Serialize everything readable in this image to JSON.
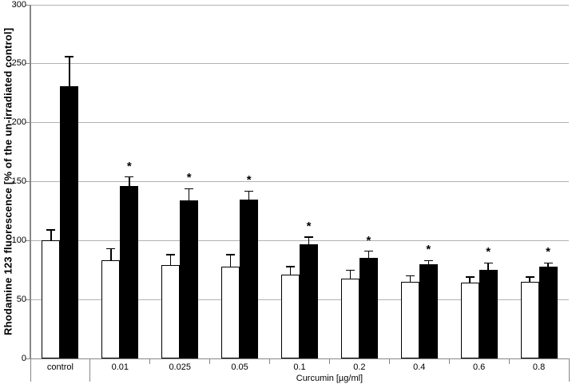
{
  "chart_data": {
    "type": "bar",
    "title": "",
    "ylabel": "Rhodamine 123 fluorescence [% of the un-irradiated control]",
    "group_axis_label": "Curcumin [µg/ml]",
    "categories": [
      "control",
      "0.01",
      "0.025",
      "0.05",
      "0.1",
      "0.2",
      "0.4",
      "0.6",
      "0.8"
    ],
    "series": [
      {
        "name": "open-bars",
        "fill": "#ffffff",
        "border": "#000000",
        "values": [
          100,
          83,
          79,
          78,
          71,
          68,
          65,
          64,
          65
        ],
        "errors_plus": [
          9,
          10,
          9,
          10,
          7,
          7,
          5,
          5,
          4
        ],
        "significant": [
          false,
          false,
          false,
          false,
          false,
          false,
          false,
          false,
          false
        ]
      },
      {
        "name": "filled-bars",
        "fill": "#000000",
        "border": "#000000",
        "values": [
          231,
          146,
          134,
          135,
          97,
          85,
          80,
          75,
          78
        ],
        "errors_plus": [
          25,
          8,
          10,
          7,
          6,
          6,
          3,
          6,
          3
        ],
        "significant": [
          false,
          true,
          true,
          true,
          true,
          true,
          true,
          true,
          true
        ]
      }
    ],
    "significance_marker": "*",
    "ylim": [
      0,
      300
    ],
    "yticks": [
      0,
      50,
      100,
      150,
      200,
      250,
      300
    ],
    "grid": true,
    "legend": false,
    "error_bar_direction": "plus",
    "colors": {
      "background": "#ffffff",
      "gridline": "#b2b2b2",
      "axis": "#878787",
      "bar_border": "#000000",
      "text": "#000000"
    }
  }
}
